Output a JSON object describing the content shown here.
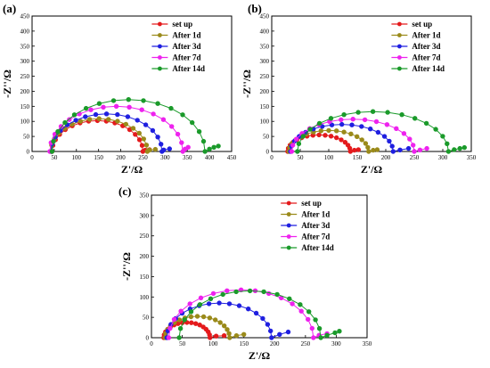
{
  "chart_data": [
    {
      "type": "scatter",
      "panel_label": "(a)",
      "xlabel": "Z'/Ω",
      "ylabel": "-Z''/Ω",
      "xlim": [
        0,
        450
      ],
      "ylim": [
        0,
        450
      ],
      "xticks": [
        "0",
        "50",
        "100",
        "150",
        "200",
        "250",
        "300",
        "350",
        "400",
        "450"
      ],
      "yticks": [
        "0",
        "50",
        "100",
        "150",
        "200",
        "250",
        "300",
        "350",
        "400",
        "450"
      ],
      "legend_position": "top-right",
      "series": [
        {
          "name": "set up",
          "color": "#e41a1c",
          "x0": 45,
          "R": 205,
          "tail": [
            [
              255,
              4
            ],
            [
              265,
              6
            ]
          ]
        },
        {
          "name": "After 1d",
          "color": "#9a8a1a",
          "x0": 42,
          "R": 218,
          "tail": [
            [
              265,
              5
            ],
            [
              278,
              7
            ]
          ]
        },
        {
          "name": "After 3d",
          "color": "#1f1fe0",
          "x0": 43,
          "R": 250,
          "tail": [
            [
              297,
              5
            ],
            [
              310,
              9
            ]
          ]
        },
        {
          "name": "After 7d",
          "color": "#ee22ee",
          "x0": 40,
          "R": 300,
          "tail": [
            [
              345,
              8
            ],
            [
              352,
              14
            ]
          ]
        },
        {
          "name": "After 14d",
          "color": "#1a9a2a",
          "x0": 45,
          "R": 345,
          "tail": [
            [
              400,
              8
            ],
            [
              410,
              14
            ],
            [
              420,
              18
            ]
          ]
        }
      ]
    },
    {
      "type": "scatter",
      "panel_label": "(b)",
      "xlabel": "Z'/Ω",
      "ylabel": "-Z''/Ω",
      "xlim": [
        0,
        350
      ],
      "ylim": [
        0,
        450
      ],
      "xticks": [
        "0",
        "50",
        "100",
        "150",
        "200",
        "250",
        "300",
        "350"
      ],
      "yticks": [
        "0",
        "50",
        "100",
        "150",
        "200",
        "250",
        "300",
        "350",
        "400",
        "450"
      ],
      "legend_position": "top-right",
      "series": [
        {
          "name": "set up",
          "color": "#e41a1c",
          "x0": 28,
          "R": 110,
          "tail": [
            [
              145,
              4
            ],
            [
              152,
              6
            ]
          ]
        },
        {
          "name": "After 1d",
          "color": "#9a8a1a",
          "x0": 30,
          "R": 140,
          "tail": [
            [
              178,
              4
            ],
            [
              185,
              6
            ]
          ]
        },
        {
          "name": "After 3d",
          "color": "#1f1fe0",
          "x0": 33,
          "R": 180,
          "tail": [
            [
              225,
              5
            ],
            [
              240,
              10
            ]
          ]
        },
        {
          "name": "After 7d",
          "color": "#ee22ee",
          "x0": 35,
          "R": 215,
          "tail": [
            [
              260,
              5
            ],
            [
              272,
              10
            ]
          ]
        },
        {
          "name": "After 14d",
          "color": "#1a9a2a",
          "x0": 45,
          "R": 265,
          "tail": [
            [
              320,
              6
            ],
            [
              330,
              10
            ],
            [
              338,
              13
            ]
          ]
        }
      ]
    },
    {
      "type": "scatter",
      "panel_label": "(c)",
      "xlabel": "Z'/Ω",
      "ylabel": "-Z''/Ω",
      "xlim": [
        0,
        350
      ],
      "ylim": [
        0,
        350
      ],
      "xticks": [
        "0",
        "50",
        "100",
        "150",
        "200",
        "250",
        "300",
        "350"
      ],
      "yticks": [
        "0",
        "50",
        "100",
        "150",
        "200",
        "250",
        "300",
        "350"
      ],
      "legend_position": "top-right",
      "series": [
        {
          "name": "set up",
          "color": "#e41a1c",
          "x0": 20,
          "R": 75,
          "tail": [
            [
              105,
              4
            ],
            [
              118,
              5
            ]
          ]
        },
        {
          "name": "After 1d",
          "color": "#9a8a1a",
          "x0": 22,
          "R": 105,
          "tail": [
            [
              138,
              5
            ],
            [
              150,
              8
            ]
          ]
        },
        {
          "name": "After 3d",
          "color": "#1f1fe0",
          "x0": 25,
          "R": 170,
          "tail": [
            [
              208,
              8
            ],
            [
              222,
              14
            ]
          ]
        },
        {
          "name": "After 7d",
          "color": "#ee22ee",
          "x0": 28,
          "R": 235,
          "tail": [
            [
              272,
              6
            ],
            [
              285,
              10
            ]
          ]
        },
        {
          "name": "After 14d",
          "color": "#1a9a2a",
          "x0": 45,
          "R": 230,
          "tail": [
            [
              285,
              6
            ],
            [
              298,
              12
            ],
            [
              305,
              16
            ]
          ]
        }
      ]
    }
  ]
}
